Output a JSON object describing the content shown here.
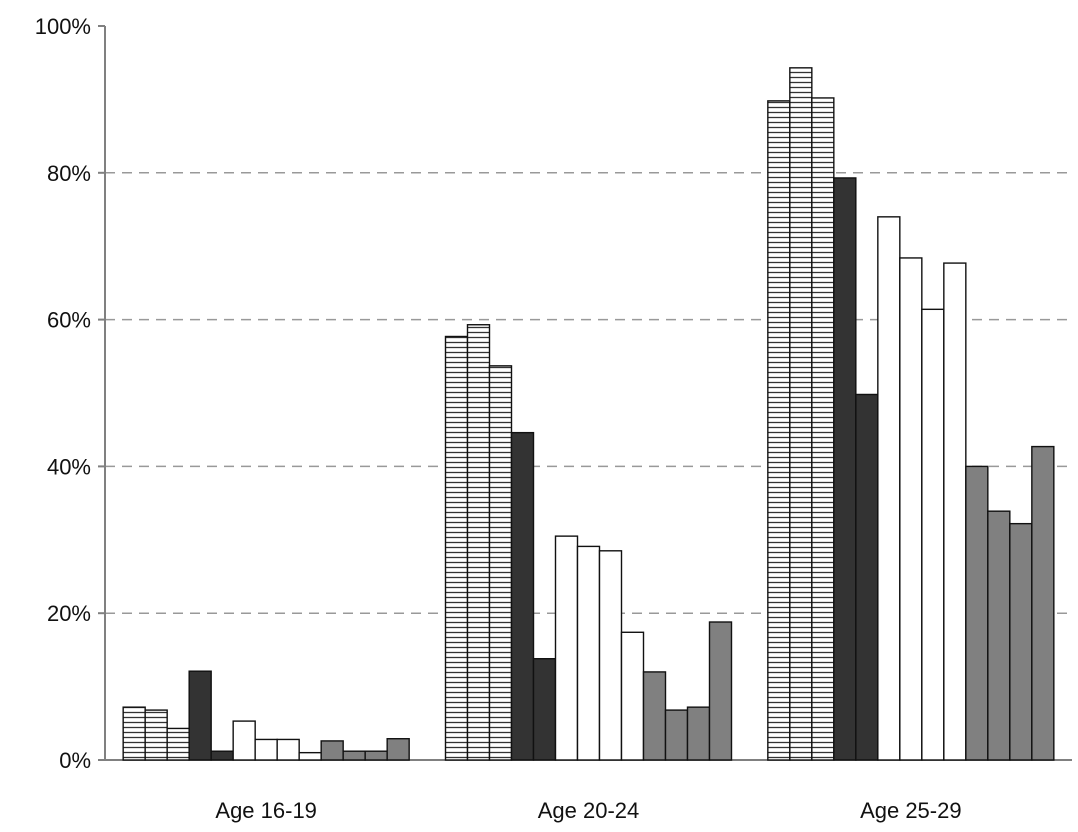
{
  "chart_data": {
    "type": "bar",
    "title": "",
    "xlabel": "",
    "ylabel": "",
    "ylim": [
      0,
      100
    ],
    "yticks": [
      0,
      20,
      40,
      60,
      80,
      100
    ],
    "ytick_labels": [
      "0%",
      "20%",
      "40%",
      "60%",
      "80%",
      "100%"
    ],
    "grid": "horizontal dashed",
    "legend": "none",
    "categories": [
      "Age 16-19",
      "Age 20-24",
      "Age 25-29"
    ],
    "series": [
      {
        "values": [
          7.2,
          57.7,
          89.8
        ],
        "style": "hatched"
      },
      {
        "values": [
          6.8,
          59.3,
          94.3
        ],
        "style": "hatched"
      },
      {
        "values": [
          4.3,
          53.7,
          90.2
        ],
        "style": "hatched"
      },
      {
        "values": [
          12.1,
          44.6,
          79.3
        ],
        "style": "dark"
      },
      {
        "values": [
          1.2,
          13.8,
          49.8
        ],
        "style": "dark"
      },
      {
        "values": [
          5.3,
          30.5,
          74.0
        ],
        "style": "white"
      },
      {
        "values": [
          2.8,
          29.1,
          68.4
        ],
        "style": "white"
      },
      {
        "values": [
          2.8,
          28.5,
          61.4
        ],
        "style": "white"
      },
      {
        "values": [
          1.0,
          17.4,
          67.7
        ],
        "style": "white"
      },
      {
        "values": [
          2.6,
          12.0,
          40.0
        ],
        "style": "gray"
      },
      {
        "values": [
          1.2,
          6.8,
          33.9
        ],
        "style": "gray"
      },
      {
        "values": [
          1.2,
          7.2,
          32.2
        ],
        "style": "gray"
      },
      {
        "values": [
          2.9,
          18.8,
          42.7
        ],
        "style": "gray"
      }
    ],
    "colors": {
      "hatched": "#ffffff",
      "hatch_line": "#333333",
      "dark": "#333333",
      "white": "#ffffff",
      "gray": "#808080",
      "grid": "#999999",
      "axis": "#808080",
      "bar_edge": "#111111"
    }
  }
}
